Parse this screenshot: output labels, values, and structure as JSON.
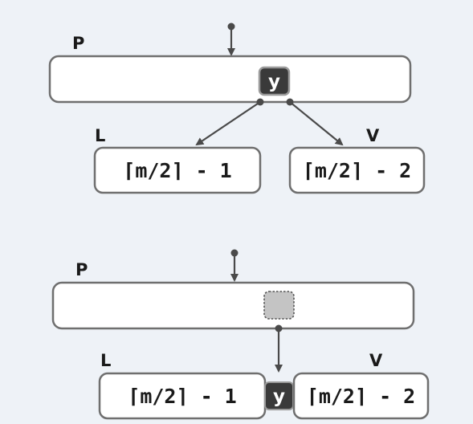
{
  "top": {
    "parent_label": "P",
    "left_label": "L",
    "right_label": "V",
    "key_label": "y",
    "left_value": "⌈m/2⌉ - 1",
    "right_value": "⌈m/2⌉ - 2"
  },
  "bottom": {
    "parent_label": "P",
    "left_label": "L",
    "right_label": "V",
    "key_label": "y",
    "left_value": "⌈m/2⌉ - 1",
    "right_value": "⌈m/2⌉ - 2"
  },
  "colors": {
    "box_stroke": "#6f6f6f",
    "box_fill": "#ffffff",
    "key_fill": "#3a3a3a",
    "empty_slot_fill": "#c4c4c4",
    "arrow": "#4a4a4a"
  }
}
